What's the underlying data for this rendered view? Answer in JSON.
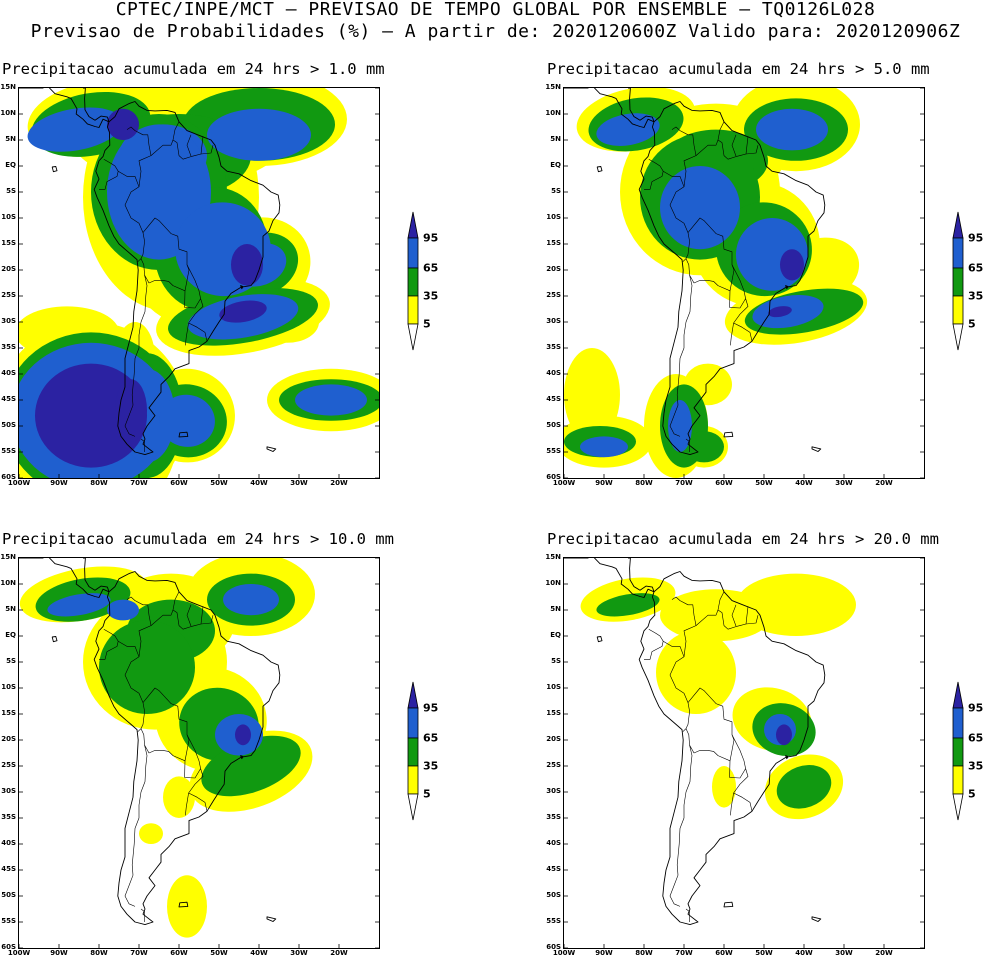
{
  "header": {
    "line1": "CPTEC/INPE/MCT — PREVISAO DE TEMPO GLOBAL POR ENSEMBLE — TQ0126L028",
    "line2": "Previsao de Probabilidades (%) —  A partir de: 2020120600Z  Valido para: 2020120906Z"
  },
  "colors": {
    "c5": "#ffff00",
    "c35": "#119911",
    "c65": "#1f5fcf",
    "c95": "#2b22a2"
  },
  "legend_labels": [
    "95",
    "65",
    "35",
    "5"
  ],
  "axes": {
    "lat_labels": [
      "15N",
      "10N",
      "5N",
      "EQ",
      "5S",
      "10S",
      "15S",
      "20S",
      "25S",
      "30S",
      "35S",
      "40S",
      "45S",
      "50S",
      "55S",
      "60S"
    ],
    "lon_labels": [
      "100W",
      "90W",
      "80W",
      "70W",
      "60W",
      "50W",
      "40W",
      "30W",
      "20W"
    ]
  },
  "panels": [
    {
      "title": "Precipitacao acumulada em 24 hrs > 1.0 mm",
      "threshold_mm": 1.0
    },
    {
      "title": "Precipitacao acumulada em 24 hrs > 5.0 mm",
      "threshold_mm": 5.0
    },
    {
      "title": "Precipitacao acumulada em 24 hrs > 10.0 mm",
      "threshold_mm": 10.0
    },
    {
      "title": "Precipitacao acumulada em 24 hrs > 20.0 mm",
      "threshold_mm": 20.0
    }
  ]
}
